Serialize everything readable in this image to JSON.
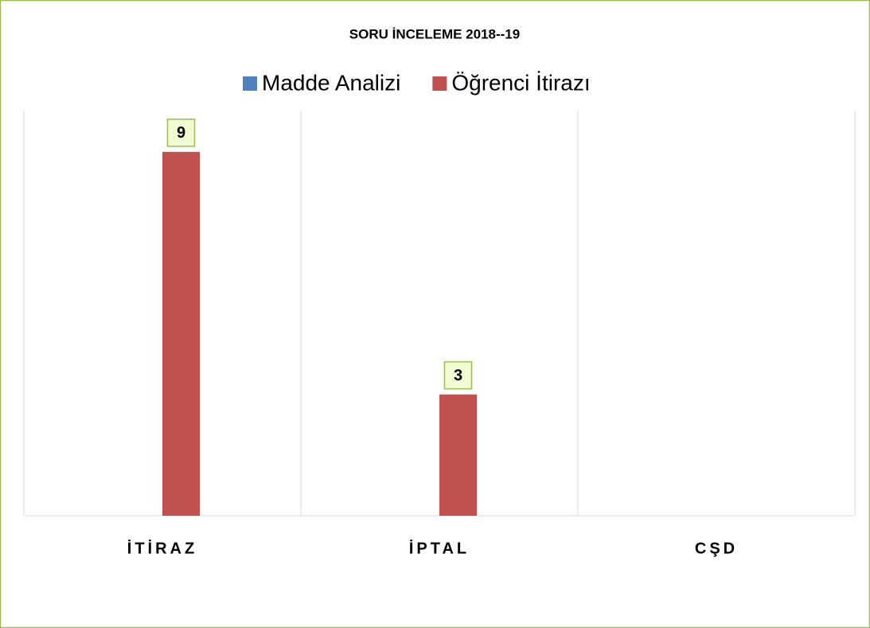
{
  "chart_data": {
    "type": "bar",
    "title": "SORU İNCELEME 2018--19",
    "categories": [
      "İTİRAZ",
      "İPTAL",
      "CŞD"
    ],
    "series": [
      {
        "name": "Madde Analizi",
        "color": "#4f81bd",
        "values": [
          null,
          null,
          null
        ]
      },
      {
        "name": "Öğrenci İtirazı",
        "color": "#c0504d",
        "values": [
          9,
          3,
          null
        ]
      }
    ],
    "ylim": [
      0,
      10
    ],
    "grid": true,
    "legend": "top"
  }
}
